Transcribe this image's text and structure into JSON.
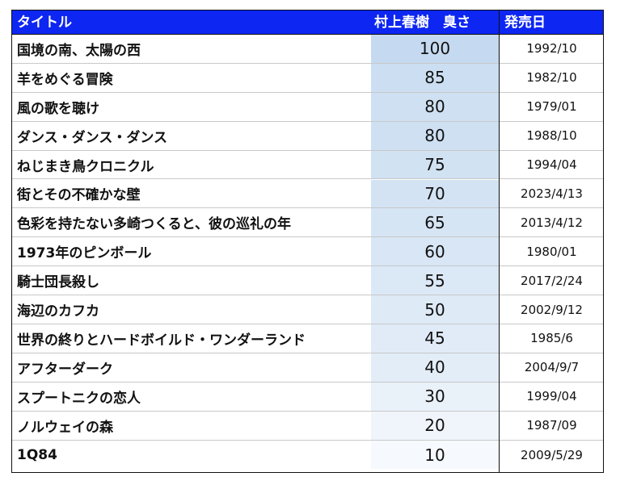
{
  "colors": {
    "header_bg": "#0d26f2",
    "header_text": "#ffffff",
    "score_fill_max": "#c5daf0"
  },
  "header": {
    "title": "タイトル",
    "score": "村上春樹　臭さ",
    "release": "発売日"
  },
  "rows": [
    {
      "title": "国境の南、太陽の西",
      "score": 100,
      "date": "1992/10"
    },
    {
      "title": "羊をめぐる冒険",
      "score": 85,
      "date": "1982/10"
    },
    {
      "title": "風の歌を聴け",
      "score": 80,
      "date": "1979/01"
    },
    {
      "title": "ダンス・ダンス・ダンス",
      "score": 80,
      "date": "1988/10"
    },
    {
      "title": "ねじまき鳥クロニクル",
      "score": 75,
      "date": "1994/04"
    },
    {
      "title": "街とその不確かな壁",
      "score": 70,
      "date": "2023/4/13"
    },
    {
      "title": "色彩を持たない多崎つくると、彼の巡礼の年",
      "score": 65,
      "date": "2013/4/12"
    },
    {
      "title": "1973年のピンボール",
      "score": 60,
      "date": "1980/01"
    },
    {
      "title": "騎士団長殺し",
      "score": 55,
      "date": "2017/2/24"
    },
    {
      "title": "海辺のカフカ",
      "score": 50,
      "date": "2002/9/12"
    },
    {
      "title": "世界の終りとハードボイルド・ワンダーランド",
      "score": 45,
      "date": "1985/6"
    },
    {
      "title": "アフターダーク",
      "score": 40,
      "date": "2004/9/7"
    },
    {
      "title": "スプートニクの恋人",
      "score": 30,
      "date": "1999/04"
    },
    {
      "title": "ノルウェイの森",
      "score": 20,
      "date": "1987/09"
    },
    {
      "title": "1Q84",
      "score": 10,
      "date": "2009/5/29"
    }
  ]
}
